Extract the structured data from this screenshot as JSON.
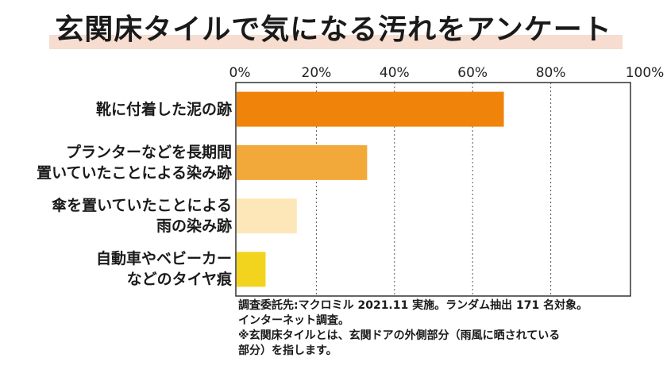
{
  "chart_data": {
    "type": "bar",
    "orientation": "horizontal",
    "title": "玄関床タイルで気になる汚れをアンケート",
    "categories": [
      [
        "靴に付着した泥の跡"
      ],
      [
        "プランターなどを長期間",
        "置いていたことによる染み跡"
      ],
      [
        "傘を置いていたことによる",
        "雨の染み跡"
      ],
      [
        "自動車やベビーカー",
        "などのタイヤ痕"
      ]
    ],
    "values": [
      68,
      33,
      15,
      7
    ],
    "colors": [
      "#F0840A",
      "#F2A93A",
      "#FDE7B8",
      "#F2D41E"
    ],
    "xlim": [
      0,
      100
    ],
    "xticks": [
      "0%",
      "20%",
      "40%",
      "60%",
      "80%",
      "100%"
    ],
    "grid": "vertical dotted",
    "unit": "%"
  },
  "notes": [
    "調査委託先:マクロミル 2021.11 実施。ランダム抽出 171 名対象。",
    "インターネット調査。",
    "※玄関床タイルとは、玄関ドアの外側部分（雨風に晒されている",
    "部分）を指します。"
  ]
}
